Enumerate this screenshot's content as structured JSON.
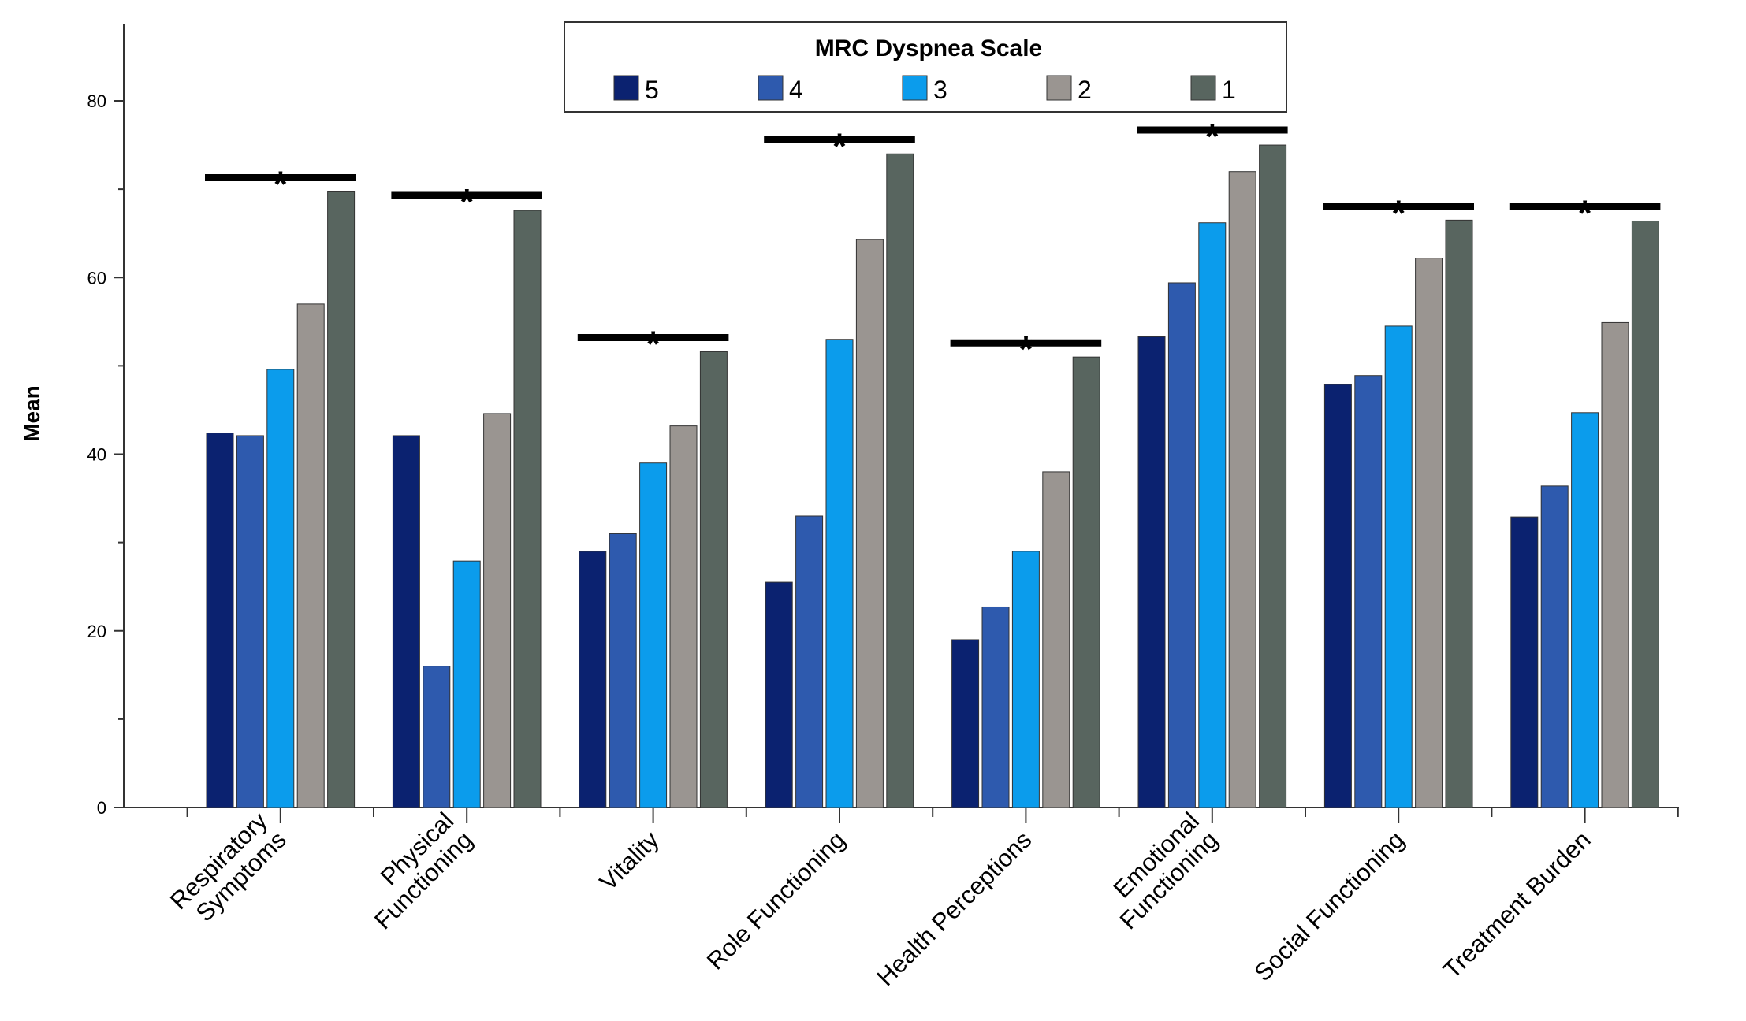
{
  "chart_data": {
    "type": "bar",
    "title": "",
    "xlabel": "",
    "ylabel": "Mean",
    "ylim": [
      0,
      88
    ],
    "yticks": [
      0,
      20,
      40,
      60,
      80
    ],
    "grid": false,
    "categories": [
      [
        "Respiratory",
        "Symptoms"
      ],
      [
        "Physical",
        "Functioning"
      ],
      [
        "Vitality"
      ],
      [
        "Role Functioning"
      ],
      [
        "Health Perceptions"
      ],
      [
        "Emotional",
        "Functioning"
      ],
      [
        "Social Functioning"
      ],
      [
        "Treatment Burden"
      ]
    ],
    "legend": {
      "title": "MRC Dyspnea Scale",
      "placement": "top-center"
    },
    "series": [
      {
        "name": "5",
        "color": "#0b2270",
        "values": [
          42.4,
          42.1,
          29.0,
          25.5,
          19.0,
          53.3,
          47.9,
          32.9
        ]
      },
      {
        "name": "4",
        "color": "#2e5aae",
        "values": [
          42.1,
          16.0,
          31.0,
          33.0,
          22.7,
          59.4,
          48.9,
          36.4
        ]
      },
      {
        "name": "3",
        "color": "#0b9cec",
        "values": [
          49.6,
          27.9,
          39.0,
          53.0,
          29.0,
          66.2,
          54.5,
          44.7
        ]
      },
      {
        "name": "2",
        "color": "#9a9591",
        "values": [
          57.0,
          44.6,
          43.2,
          64.3,
          38.0,
          72.0,
          62.2,
          54.9
        ]
      },
      {
        "name": "1",
        "color": "#58655f",
        "values": [
          69.7,
          67.6,
          51.6,
          74.0,
          51.0,
          75.0,
          66.5,
          66.4
        ]
      }
    ],
    "significance": {
      "symbol": "*",
      "bar_heights": [
        71.3,
        69.3,
        53.2,
        75.6,
        52.6,
        76.7,
        68.0,
        68.0
      ]
    }
  }
}
